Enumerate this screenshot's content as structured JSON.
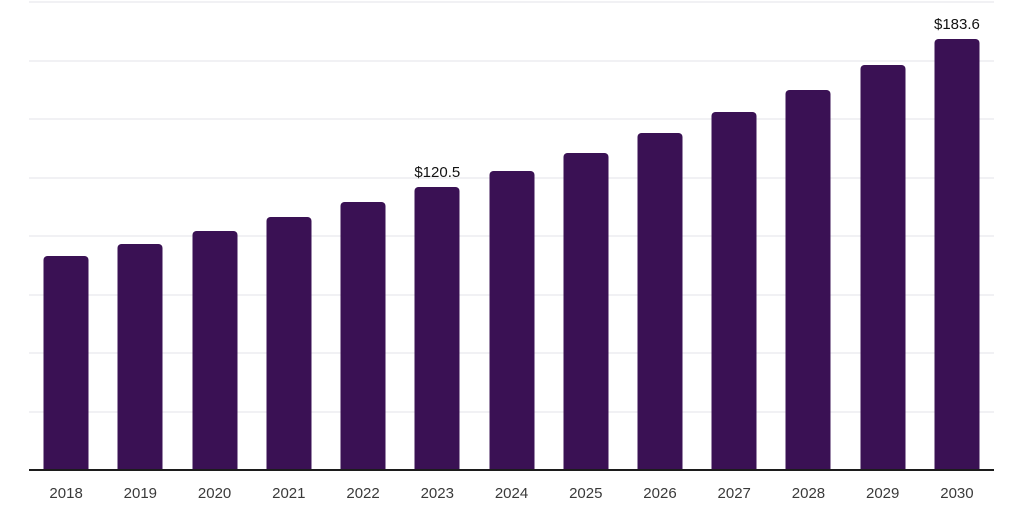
{
  "chart_data": {
    "type": "bar",
    "title": "",
    "xlabel": "",
    "ylabel": "",
    "categories": [
      "2018",
      "2019",
      "2020",
      "2021",
      "2022",
      "2023",
      "2024",
      "2025",
      "2026",
      "2027",
      "2028",
      "2029",
      "2030"
    ],
    "values": [
      91.0,
      96.1,
      101.9,
      107.5,
      114.0,
      120.5,
      127.3,
      135.1,
      143.6,
      152.7,
      162.1,
      172.5,
      183.6
    ],
    "value_labels": [
      "",
      "",
      "",
      "",
      "",
      "$120.5",
      "",
      "",
      "",
      "",
      "",
      "",
      "$183.6"
    ],
    "value_prefix": "$",
    "ylim": [
      0,
      200
    ],
    "grid_step": 25,
    "grid": true,
    "legend": "none",
    "bar_color": "#3a1154",
    "grid_color": "#f1f1f4",
    "axis_color": "#1c1c1c",
    "tick_label_color": "#3a3a3a",
    "value_label_color": "#121212",
    "background_color": "#ffffff"
  }
}
